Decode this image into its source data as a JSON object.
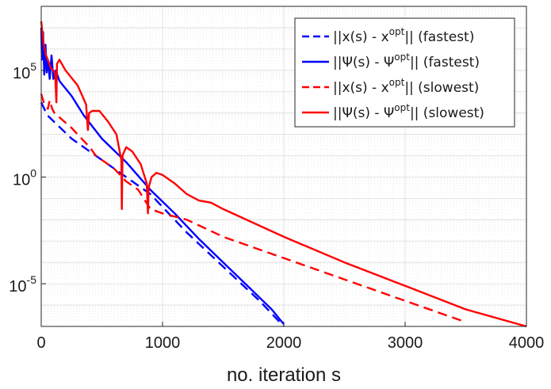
{
  "chart_data": {
    "type": "line",
    "title": "",
    "xlabel": "no. iteration s",
    "ylabel": "",
    "xlim": [
      0,
      4000
    ],
    "ylim_log10": [
      -7,
      8
    ],
    "yscale": "log",
    "grid": true,
    "minor_grid": true,
    "legend_position": "top-right",
    "x_ticks": [
      0,
      1000,
      2000,
      3000,
      4000
    ],
    "x_tick_labels": [
      "0",
      "1000",
      "2000",
      "3000",
      "4000"
    ],
    "y_ticks_log10": [
      5,
      0,
      -5
    ],
    "y_tick_labels": [
      {
        "base": "10",
        "exp": "5"
      },
      {
        "base": "10",
        "exp": "0"
      },
      {
        "base": "10",
        "exp": "-5"
      }
    ],
    "series": [
      {
        "name": "x-fastest",
        "label": {
          "pre": "||x(s) - x",
          "sup": "opt",
          "post": "|| (fastest)"
        },
        "color": "#0000ff",
        "style": "dashed",
        "points_log10": [
          [
            0,
            3.5
          ],
          [
            50,
            2.9
          ],
          [
            250,
            1.8
          ],
          [
            500,
            0.8
          ],
          [
            750,
            -0.2
          ],
          [
            900,
            -0.8
          ],
          [
            1000,
            -1.4
          ],
          [
            1200,
            -2.6
          ],
          [
            1500,
            -4.2
          ],
          [
            1800,
            -5.8
          ],
          [
            2000,
            -7.0
          ]
        ]
      },
      {
        "name": "psi-fastest",
        "label": {
          "pre": "||Ψ(s) - Ψ",
          "sup": "opt",
          "post": "|| (fastest)"
        },
        "color": "#0000ff",
        "style": "solid",
        "points_log10": [
          [
            0,
            7.0
          ],
          [
            5,
            5.5
          ],
          [
            15,
            6.8
          ],
          [
            25,
            4.8
          ],
          [
            35,
            6.2
          ],
          [
            45,
            4.9
          ],
          [
            55,
            5.5
          ],
          [
            70,
            4.6
          ],
          [
            85,
            5.7
          ],
          [
            100,
            4.6
          ],
          [
            120,
            5.0
          ],
          [
            150,
            4.5
          ],
          [
            250,
            3.8
          ],
          [
            350,
            2.9
          ],
          [
            500,
            1.8
          ],
          [
            700,
            0.7
          ],
          [
            900,
            -0.6
          ],
          [
            1100,
            -1.7
          ],
          [
            1300,
            -2.9
          ],
          [
            1500,
            -4.0
          ],
          [
            1700,
            -5.1
          ],
          [
            1900,
            -6.2
          ],
          [
            2000,
            -6.9
          ]
        ]
      },
      {
        "name": "x-slowest",
        "label": {
          "pre": "||x(s) - x",
          "sup": "opt",
          "post": "|| (slowest)"
        },
        "color": "#ff0000",
        "style": "dashed",
        "points_log10": [
          [
            0,
            3.9
          ],
          [
            20,
            3.5
          ],
          [
            40,
            3.3
          ],
          [
            55,
            3.2
          ],
          [
            70,
            3.6
          ],
          [
            90,
            3.2
          ],
          [
            110,
            3.0
          ],
          [
            250,
            2.3
          ],
          [
            400,
            1.4
          ],
          [
            450,
            1.0
          ],
          [
            500,
            0.8
          ],
          [
            600,
            0.4
          ],
          [
            700,
            -0.2
          ],
          [
            800,
            -0.6
          ],
          [
            900,
            -1.5
          ],
          [
            1000,
            -1.7
          ],
          [
            1200,
            -2.0
          ],
          [
            1500,
            -2.8
          ],
          [
            2000,
            -3.8
          ],
          [
            2500,
            -4.8
          ],
          [
            3000,
            -5.8
          ],
          [
            3500,
            -6.8
          ]
        ]
      },
      {
        "name": "psi-slowest",
        "label": {
          "pre": "||Ψ(s) - Ψ",
          "sup": "opt",
          "post": "|| (slowest)"
        },
        "color": "#ff0000",
        "style": "solid",
        "points_log10": [
          [
            0,
            7.3
          ],
          [
            20,
            6.2
          ],
          [
            40,
            5.7
          ],
          [
            60,
            5.4
          ],
          [
            80,
            5.1
          ],
          [
            100,
            5.0
          ],
          [
            115,
            4.8
          ],
          [
            125,
            3.5
          ],
          [
            130,
            5.3
          ],
          [
            150,
            5.5
          ],
          [
            200,
            5.0
          ],
          [
            300,
            4.3
          ],
          [
            370,
            3.4
          ],
          [
            385,
            2.2
          ],
          [
            395,
            3.0
          ],
          [
            420,
            3.1
          ],
          [
            480,
            3.1
          ],
          [
            550,
            2.6
          ],
          [
            620,
            2.0
          ],
          [
            660,
            0.8
          ],
          [
            665,
            -1.5
          ],
          [
            670,
            1.0
          ],
          [
            700,
            1.4
          ],
          [
            750,
            1.2
          ],
          [
            820,
            0.6
          ],
          [
            870,
            -0.3
          ],
          [
            880,
            -1.7
          ],
          [
            885,
            -0.5
          ],
          [
            910,
            0.0
          ],
          [
            950,
            0.2
          ],
          [
            1000,
            0.1
          ],
          [
            1100,
            -0.3
          ],
          [
            1200,
            -0.8
          ],
          [
            1300,
            -1.1
          ],
          [
            1400,
            -1.2
          ],
          [
            1500,
            -1.5
          ],
          [
            2000,
            -2.8
          ],
          [
            2500,
            -4.0
          ],
          [
            3000,
            -5.1
          ],
          [
            3500,
            -6.2
          ],
          [
            4000,
            -7.0
          ]
        ]
      }
    ]
  }
}
